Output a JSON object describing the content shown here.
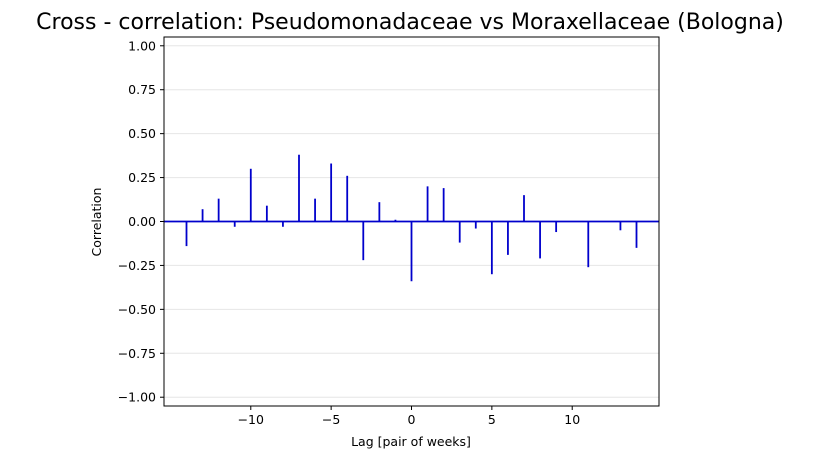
{
  "chart_data": {
    "type": "bar",
    "title": "Cross - correlation: Pseudomonadaceae vs Moraxellaceae (Bologna)",
    "xlabel": "Lag [pair of weeks]",
    "ylabel": "Correlation",
    "xlim": [
      -15.4,
      15.4
    ],
    "ylim": [
      -1.05,
      1.05
    ],
    "xticks": [
      -10,
      -5,
      0,
      5,
      10
    ],
    "xtick_labels": [
      "−10",
      "−5",
      "0",
      "5",
      "10"
    ],
    "yticks": [
      1.0,
      0.75,
      0.5,
      0.25,
      0.0,
      -0.25,
      -0.5,
      -0.75,
      -1.0
    ],
    "ytick_labels": [
      "1.00",
      "0.75",
      "0.50",
      "0.25",
      "0.00",
      "−0.25",
      "−0.50",
      "−0.75",
      "−1.00"
    ],
    "grid": "y-only",
    "color": "#0000cc",
    "lags": [
      -14,
      -13,
      -12,
      -11,
      -10,
      -9,
      -8,
      -7,
      -6,
      -5,
      -4,
      -3,
      -2,
      -1,
      0,
      1,
      2,
      3,
      4,
      5,
      6,
      7,
      8,
      9,
      10,
      11,
      12,
      13,
      14
    ],
    "values": [
      -0.14,
      0.07,
      0.13,
      -0.03,
      0.3,
      0.09,
      -0.03,
      0.38,
      0.13,
      0.33,
      0.26,
      -0.22,
      0.11,
      0.01,
      -0.34,
      0.2,
      0.19,
      -0.12,
      -0.04,
      -0.3,
      -0.19,
      0.15,
      -0.21,
      -0.06,
      0.0,
      -0.26,
      0.0,
      -0.05,
      -0.15
    ]
  }
}
